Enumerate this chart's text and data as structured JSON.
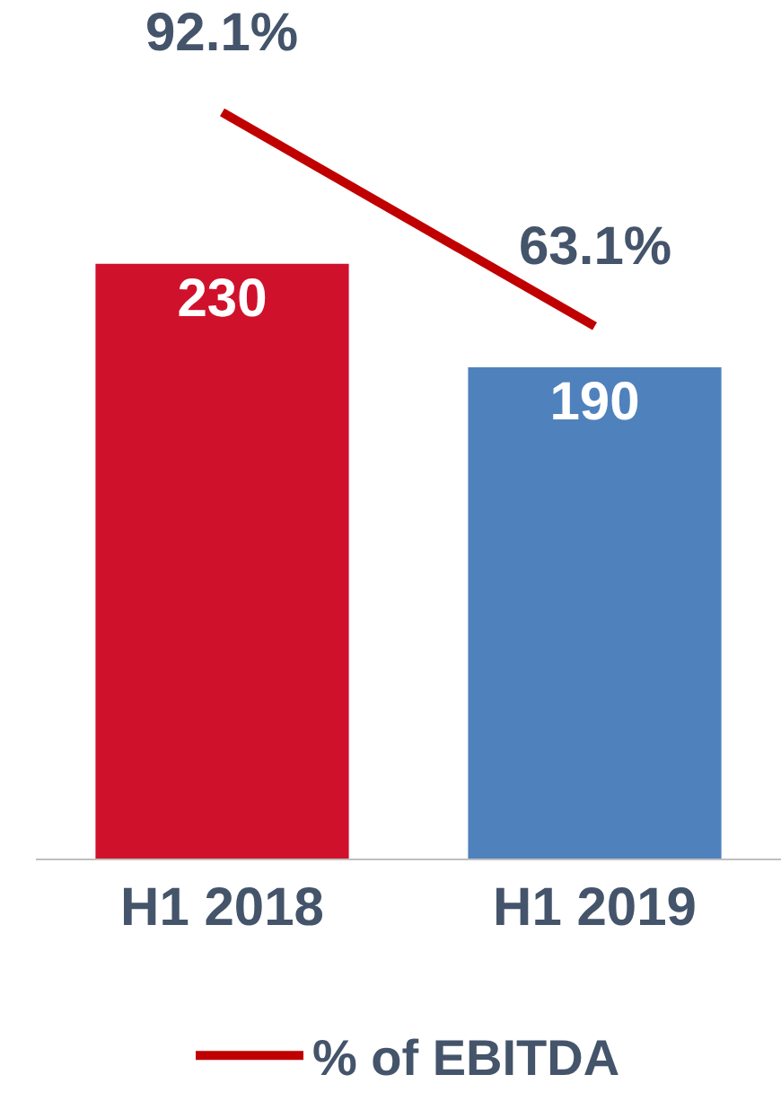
{
  "chart_data": {
    "type": "bar",
    "categories": [
      "H1 2018",
      "H1 2019"
    ],
    "series": [
      {
        "colors": [
          "#d0112b",
          "#4f81bd"
        ],
        "values": [
          230,
          190
        ]
      },
      {
        "type": "line",
        "name": "% of EBITDA",
        "color": "#c00000",
        "values": [
          92.1,
          63.1
        ],
        "value_labels": [
          "92.1%",
          "63.1%"
        ],
        "axis": "y2"
      }
    ],
    "ylim": [
      0,
      332
    ],
    "tick_labels": "x",
    "data_labels": true,
    "legend": "bottom",
    "marker": "none",
    "line_style": "solid"
  }
}
